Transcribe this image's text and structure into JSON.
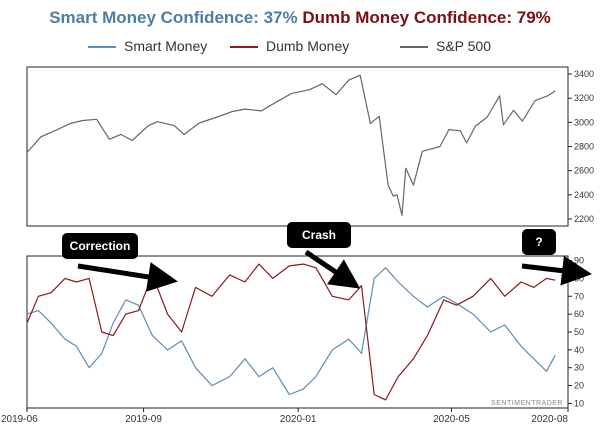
{
  "header": {
    "smart_title": "Smart Money Confidence: 37%",
    "dumb_title": "Dumb Money Confidence: 79%",
    "smart_color": "#4a7fa8",
    "dumb_color": "#7a1010"
  },
  "legend": [
    {
      "label": "Smart Money",
      "color": "#5b8db5"
    },
    {
      "label": "Dumb Money",
      "color": "#8b1a1a"
    },
    {
      "label": "S&P 500",
      "color": "#666666"
    }
  ],
  "watermark": "SENTIMENTRADER",
  "annotations": [
    {
      "label": "Correction",
      "date": "2019-07-25"
    },
    {
      "label": "Crash",
      "date": "2020-02-15"
    },
    {
      "label": "?",
      "date": "2020-07-10"
    }
  ],
  "chart_data": [
    {
      "type": "line",
      "series": [
        {
          "name": "S&P 500",
          "x": [
            "2019-06-01",
            "2019-06-12",
            "2019-06-25",
            "2019-07-05",
            "2019-07-15",
            "2019-07-26",
            "2019-08-05",
            "2019-08-14",
            "2019-08-23",
            "2019-09-05",
            "2019-09-12",
            "2019-09-25",
            "2019-10-03",
            "2019-10-15",
            "2019-10-28",
            "2019-11-10",
            "2019-11-20",
            "2019-12-03",
            "2019-12-15",
            "2019-12-27",
            "2020-01-10",
            "2020-01-20",
            "2020-01-31",
            "2020-02-10",
            "2020-02-19",
            "2020-02-27",
            "2020-03-05",
            "2020-03-12",
            "2020-03-16",
            "2020-03-19",
            "2020-03-23",
            "2020-03-26",
            "2020-04-01",
            "2020-04-08",
            "2020-04-15",
            "2020-04-22",
            "2020-04-29",
            "2020-05-08",
            "2020-05-13",
            "2020-05-20",
            "2020-05-29",
            "2020-06-08",
            "2020-06-11",
            "2020-06-19",
            "2020-06-26",
            "2020-07-06",
            "2020-07-16",
            "2020-07-22"
          ],
          "values": [
            2750,
            2880,
            2940,
            2990,
            3015,
            3025,
            2860,
            2900,
            2850,
            2975,
            3005,
            2975,
            2900,
            2995,
            3040,
            3090,
            3110,
            3095,
            3170,
            3240,
            3270,
            3320,
            3230,
            3350,
            3390,
            2990,
            3050,
            2480,
            2390,
            2400,
            2230,
            2620,
            2480,
            2760,
            2780,
            2800,
            2940,
            2930,
            2830,
            2970,
            3040,
            3220,
            2980,
            3100,
            3010,
            3180,
            3220,
            3260
          ]
        }
      ],
      "ylim": [
        2150,
        3450
      ],
      "yticks": [
        2200,
        2400,
        2600,
        2800,
        3000,
        3200,
        3400
      ],
      "grid": false
    },
    {
      "type": "line",
      "series": [
        {
          "name": "Smart Money",
          "x": [
            "2019-06-01",
            "2019-06-10",
            "2019-06-20",
            "2019-07-01",
            "2019-07-10",
            "2019-07-20",
            "2019-07-30",
            "2019-08-08",
            "2019-08-18",
            "2019-08-28",
            "2019-09-08",
            "2019-09-20",
            "2019-10-01",
            "2019-10-12",
            "2019-10-25",
            "2019-11-08",
            "2019-11-20",
            "2019-12-01",
            "2019-12-12",
            "2019-12-25",
            "2020-01-05",
            "2020-01-15",
            "2020-01-28",
            "2020-02-10",
            "2020-02-20",
            "2020-03-01",
            "2020-03-10",
            "2020-03-20",
            "2020-04-01",
            "2020-04-12",
            "2020-04-25",
            "2020-05-05",
            "2020-05-18",
            "2020-06-01",
            "2020-06-12",
            "2020-06-25",
            "2020-07-05",
            "2020-07-15",
            "2020-07-22"
          ],
          "values": [
            60,
            62,
            55,
            46,
            42,
            30,
            38,
            55,
            68,
            65,
            48,
            40,
            45,
            30,
            20,
            25,
            35,
            25,
            30,
            15,
            18,
            25,
            40,
            46,
            38,
            80,
            86,
            78,
            70,
            64,
            70,
            66,
            60,
            50,
            54,
            42,
            35,
            28,
            37
          ]
        },
        {
          "name": "Dumb Money",
          "x": [
            "2019-06-01",
            "2019-06-10",
            "2019-06-20",
            "2019-07-01",
            "2019-07-10",
            "2019-07-20",
            "2019-07-30",
            "2019-08-08",
            "2019-08-18",
            "2019-08-28",
            "2019-09-08",
            "2019-09-20",
            "2019-10-01",
            "2019-10-12",
            "2019-10-25",
            "2019-11-08",
            "2019-11-20",
            "2019-12-01",
            "2019-12-12",
            "2019-12-25",
            "2020-01-05",
            "2020-01-15",
            "2020-01-28",
            "2020-02-10",
            "2020-02-20",
            "2020-03-01",
            "2020-03-10",
            "2020-03-20",
            "2020-04-01",
            "2020-04-12",
            "2020-04-25",
            "2020-05-05",
            "2020-05-18",
            "2020-06-01",
            "2020-06-12",
            "2020-06-25",
            "2020-07-05",
            "2020-07-15",
            "2020-07-22"
          ],
          "values": [
            55,
            70,
            72,
            80,
            78,
            80,
            50,
            48,
            60,
            62,
            82,
            60,
            50,
            75,
            70,
            82,
            78,
            88,
            80,
            87,
            88,
            86,
            70,
            68,
            76,
            15,
            12,
            25,
            35,
            48,
            68,
            65,
            70,
            80,
            70,
            78,
            75,
            80,
            79
          ]
        }
      ],
      "ylim": [
        8,
        92
      ],
      "yticks": [
        10,
        20,
        30,
        40,
        50,
        60,
        70,
        80,
        90
      ],
      "xticks": [
        "2019-06",
        "2019-09",
        "2020-01",
        "2020-05",
        "2020-08"
      ],
      "xlim": [
        "2019-06-01",
        "2020-08-01"
      ],
      "grid": false
    }
  ]
}
